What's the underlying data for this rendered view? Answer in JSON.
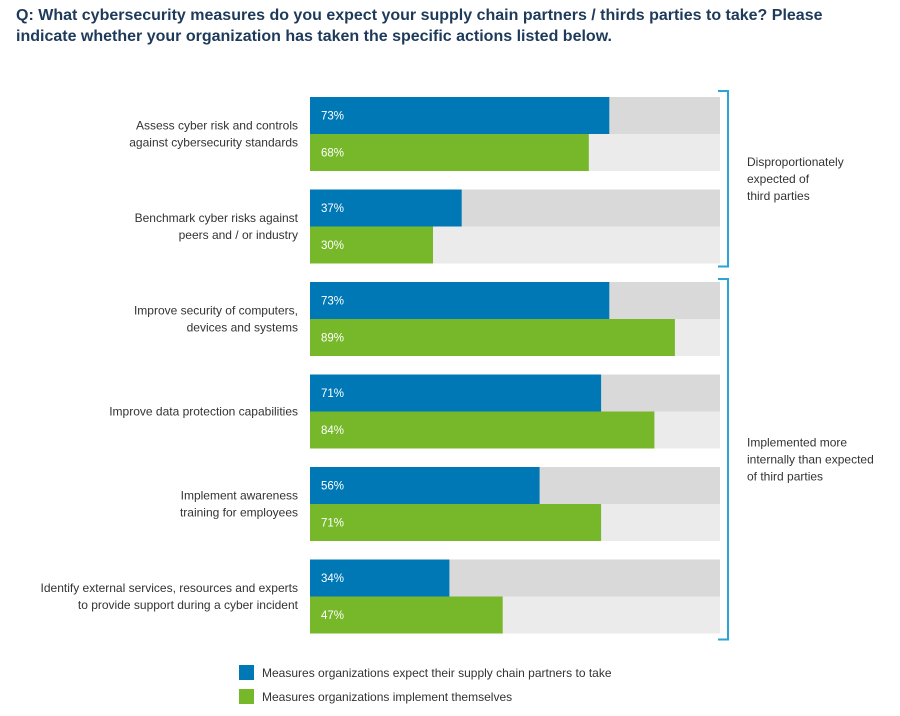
{
  "title": "Q: What cybersecurity measures do you expect your supply chain partners / thirds parties to take? Please indicate whether your organization has taken the specific actions listed below.",
  "colors": {
    "expect": "#0078b5",
    "implement": "#76b82a",
    "track_expect": "#d9d9d9",
    "track_implement": "#ebebeb",
    "bracket": "#2aa3d6"
  },
  "chart_data": {
    "type": "bar",
    "orientation": "horizontal",
    "xlim": [
      0,
      100
    ],
    "unit": "%",
    "categories": [
      [
        "Assess cyber risk and controls",
        "against cybersecurity standards"
      ],
      [
        "Benchmark cyber risks against",
        "peers and / or industry"
      ],
      [
        "Improve security of computers,",
        "devices and systems"
      ],
      [
        "Improve data protection capabilities"
      ],
      [
        "Implement awareness",
        "training for employees"
      ],
      [
        "Identify external services, resources and experts",
        "to provide support during a cyber incident"
      ]
    ],
    "series": [
      {
        "name": "Measures organizations expect their supply chain partners to take",
        "color": "#0078b5",
        "values": [
          73,
          37,
          73,
          71,
          56,
          34
        ]
      },
      {
        "name": "Measures organizations implement themselves",
        "color": "#76b82a",
        "values": [
          68,
          30,
          89,
          84,
          71,
          47
        ]
      }
    ],
    "annotations": [
      {
        "lines": [
          "Disproportionately",
          "expected of",
          "third parties"
        ],
        "from_category": 0,
        "to_category": 1
      },
      {
        "lines": [
          "Implemented more",
          "internally than expected",
          "of third parties"
        ],
        "from_category": 2,
        "to_category": 5
      }
    ],
    "legend": "bottom"
  }
}
